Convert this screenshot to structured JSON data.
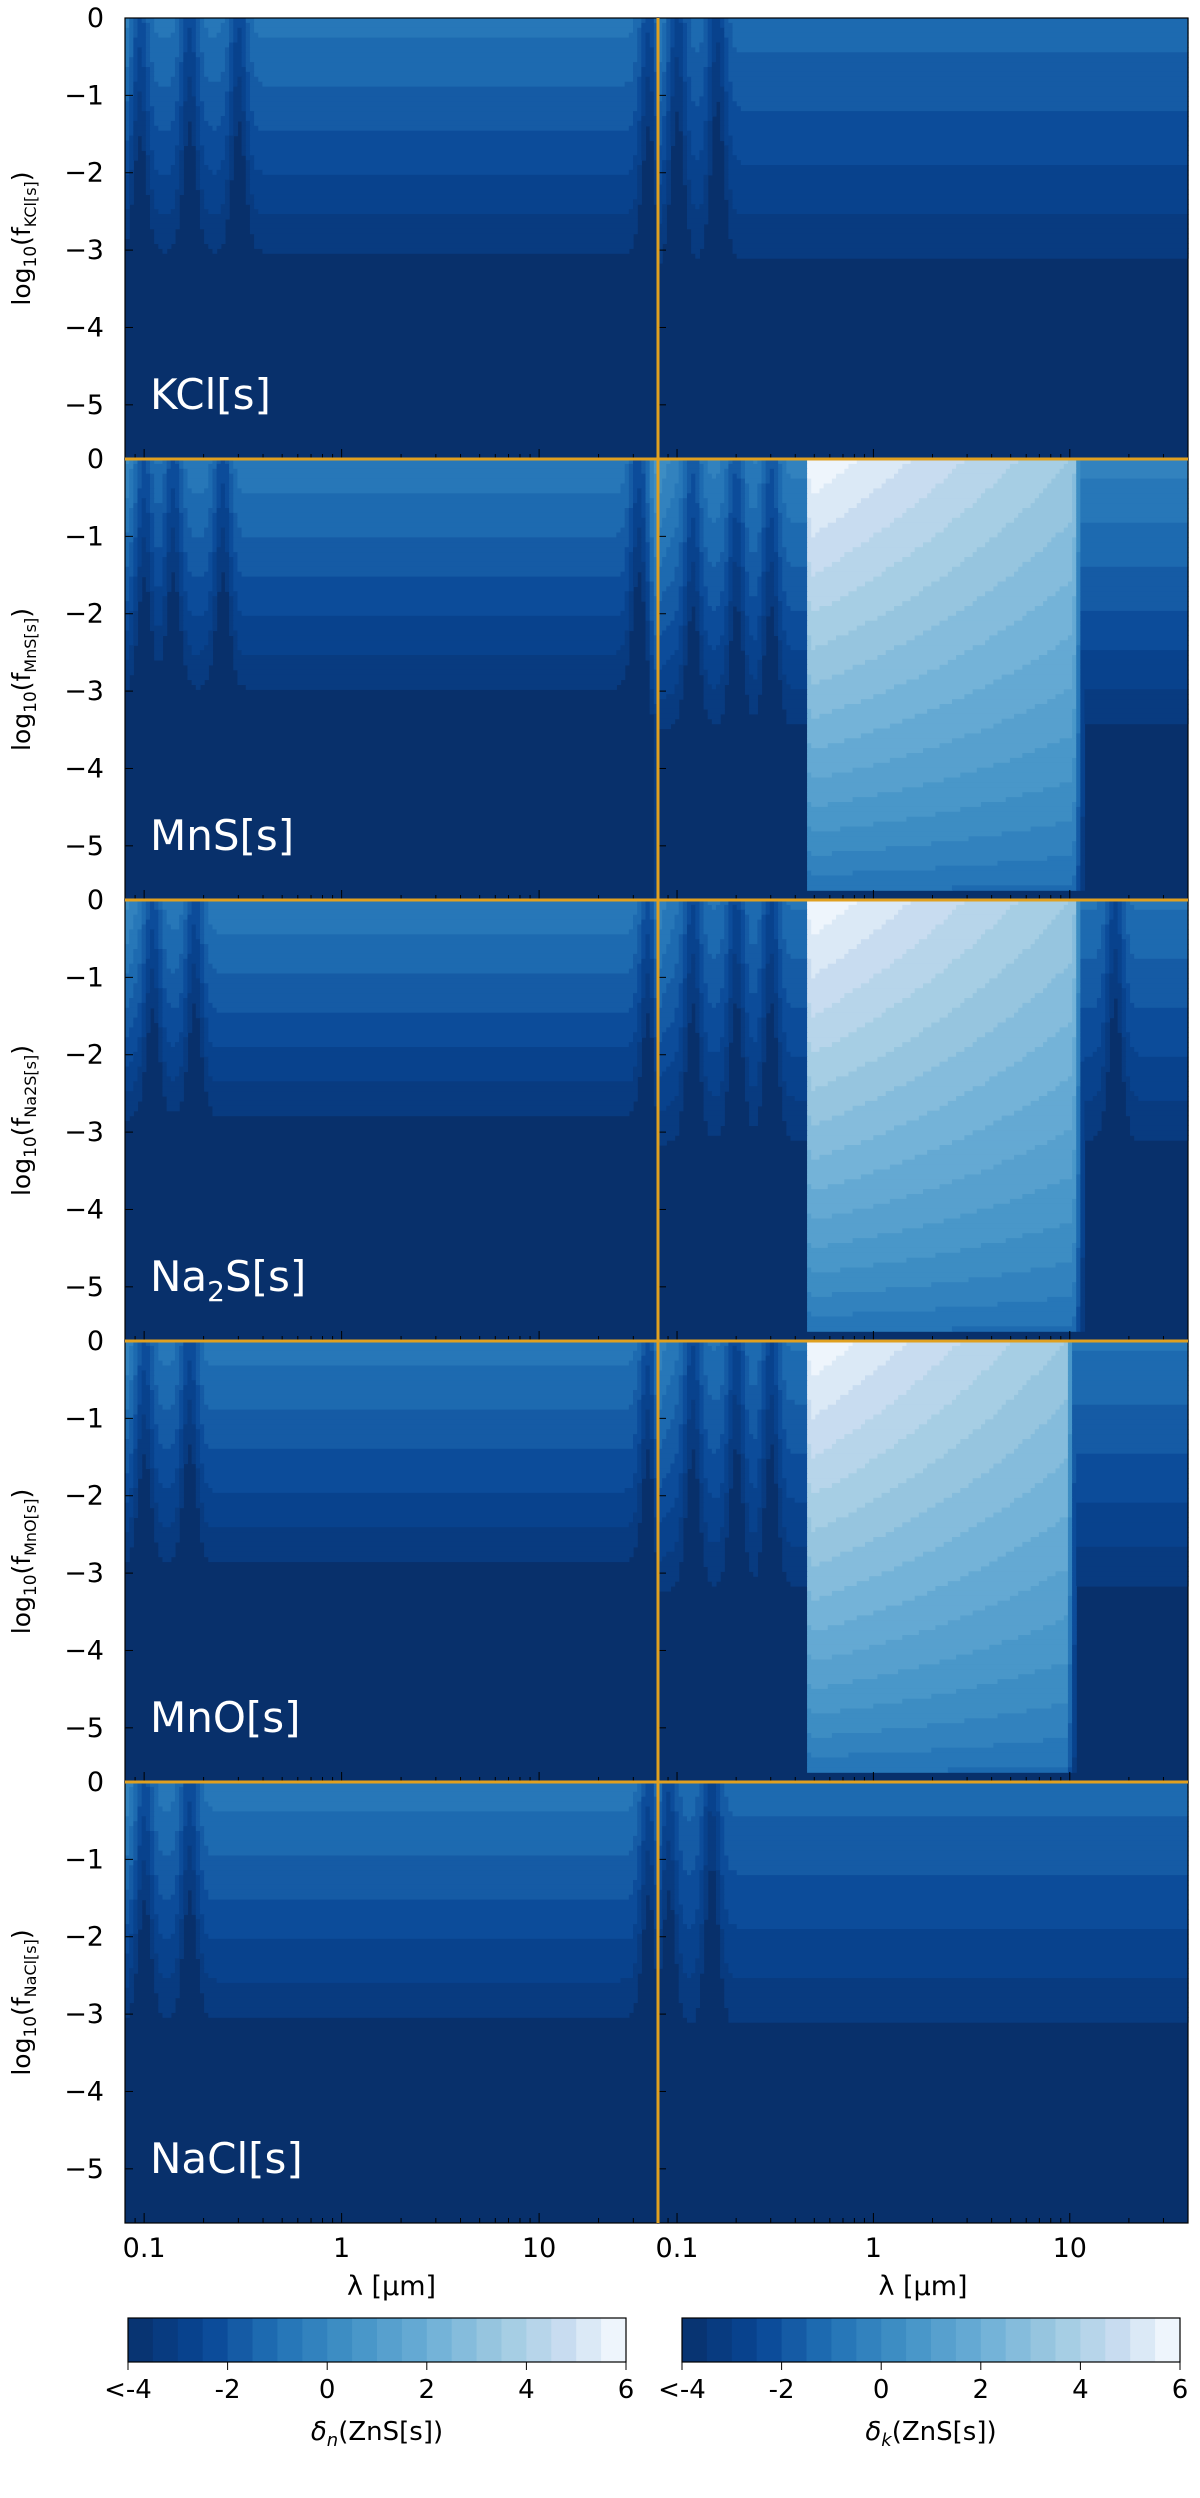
{
  "chart_data": {
    "type": "heatmap",
    "layout": "5 rows x 2 columns of filled-contour panels",
    "x_scale": "log",
    "xlim_um": [
      0.08,
      40
    ],
    "ylim": [
      -5.7,
      0
    ],
    "xlabel": "λ [µm]",
    "x_ticks": [
      {
        "value": 0.1,
        "label": "0.1"
      },
      {
        "value": 1,
        "label": "1"
      },
      {
        "value": 10,
        "label": "10"
      }
    ],
    "y_ticks": [
      {
        "value": 0,
        "label": "0"
      },
      {
        "value": -1,
        "label": "−1"
      },
      {
        "value": -2,
        "label": "−2"
      },
      {
        "value": -3,
        "label": "−3"
      },
      {
        "value": -4,
        "label": "−4"
      },
      {
        "value": -5,
        "label": "−5"
      }
    ],
    "rows": [
      {
        "species": "KCl[s]",
        "ylabel_main": "log",
        "ylabel_main_sub": "10",
        "ylabel_f": "(f",
        "ylabel_sub": "KCl[s]",
        "ylabel_close": ")",
        "label_main": "KCl[s]",
        "label_sub": "",
        "label_tail": "",
        "n": {
          "plateau_log_f": -3.4,
          "plateau_level": -0.8,
          "dips_um": [
            0.095,
            0.17,
            0.3,
            36
          ],
          "spike_um": 44
        },
        "k": {
          "plateau_log_f": -3.6,
          "plateau_level": -1.2,
          "dips_um": [
            0.1,
            0.16
          ],
          "band": null
        }
      },
      {
        "species": "MnS[s]",
        "ylabel_main": "log",
        "ylabel_main_sub": "10",
        "ylabel_f": "(f",
        "ylabel_sub": "MnS[s]",
        "ylabel_close": ")",
        "label_main": "MnS[s]",
        "label_sub": "",
        "label_tail": "",
        "n": {
          "plateau_log_f": -3.3,
          "plateau_level": -0.6,
          "dips_um": [
            0.1,
            0.14,
            0.25,
            32
          ],
          "spike_um": 40
        },
        "k": {
          "plateau_log_f": -3.8,
          "plateau_level": -0.3,
          "dips_um": [
            0.12,
            0.2,
            0.3
          ],
          "band": {
            "from_um": 0.45,
            "to_um": 12,
            "peak": 6
          }
        }
      },
      {
        "species": "Na2S[s]",
        "ylabel_main": "log",
        "ylabel_main_sub": "10",
        "ylabel_f": "(f",
        "ylabel_sub": "Na2S[s]",
        "ylabel_close": ")",
        "label_main": "Na",
        "label_sub": "2",
        "label_tail": "S[s]",
        "n": {
          "plateau_log_f": -3.1,
          "plateau_level": -0.6,
          "dips_um": [
            0.11,
            0.18,
            36
          ],
          "spike_um": 42
        },
        "k": {
          "plateau_log_f": -3.5,
          "plateau_level": -0.9,
          "dips_um": [
            0.12,
            0.2,
            0.3,
            17
          ],
          "band": {
            "from_um": 0.45,
            "to_um": 12,
            "peak": 6
          }
        }
      },
      {
        "species": "MnO[s]",
        "ylabel_main": "log",
        "ylabel_main_sub": "10",
        "ylabel_f": "(f",
        "ylabel_sub": "MnO[s]",
        "ylabel_close": ")",
        "label_main": "MnO[s]",
        "label_sub": "",
        "label_tail": "",
        "n": {
          "plateau_log_f": -3.2,
          "plateau_level": -0.7,
          "dips_um": [
            0.1,
            0.17,
            36
          ],
          "spike_um": 42
        },
        "k": {
          "plateau_log_f": -3.6,
          "plateau_level": -0.9,
          "dips_um": [
            0.12,
            0.2,
            0.3
          ],
          "band": {
            "from_um": 0.45,
            "to_um": 11,
            "peak": 6
          }
        }
      },
      {
        "species": "NaCl[s]",
        "ylabel_main": "log",
        "ylabel_main_sub": "10",
        "ylabel_f": "(f",
        "ylabel_sub": "NaCl[s]",
        "ylabel_close": ")",
        "label_main": "NaCl[s]",
        "label_sub": "",
        "label_tail": "",
        "n": {
          "plateau_log_f": -3.4,
          "plateau_level": -0.7,
          "dips_um": [
            0.1,
            0.17,
            36
          ],
          "spike_um": 44
        },
        "k": {
          "plateau_log_f": -3.6,
          "plateau_level": -1.2,
          "dips_um": [
            0.09,
            0.15
          ],
          "band": null
        }
      }
    ],
    "colorbars": [
      {
        "label_delta": "δ",
        "label_sub": "n",
        "label_tail": "(ZnS[s])",
        "ticks": [
          {
            "value": -4,
            "label": "<-4"
          },
          {
            "value": -2,
            "label": "-2"
          },
          {
            "value": 0,
            "label": "0"
          },
          {
            "value": 2,
            "label": "2"
          },
          {
            "value": 4,
            "label": "4"
          },
          {
            "value": 6,
            "label": "6"
          }
        ]
      },
      {
        "label_delta": "δ",
        "label_sub": "k",
        "label_tail": "(ZnS[s])",
        "ticks": [
          {
            "value": -4,
            "label": "<-4"
          },
          {
            "value": -2,
            "label": "-2"
          },
          {
            "value": 0,
            "label": "0"
          },
          {
            "value": 2,
            "label": "2"
          },
          {
            "value": 4,
            "label": "4"
          },
          {
            "value": 6,
            "label": "6"
          }
        ]
      }
    ],
    "levels": [
      -4,
      -3.5,
      -3,
      -2.5,
      -2,
      -1.5,
      -1,
      -0.5,
      0,
      0.5,
      1,
      1.5,
      2,
      2.5,
      3,
      3.5,
      4,
      4.5,
      5,
      5.5,
      6
    ],
    "colormap": "Blues_r",
    "colors": {
      "low": "#08306b",
      "high": "#f7fbff",
      "separator": "#e0a020"
    }
  }
}
